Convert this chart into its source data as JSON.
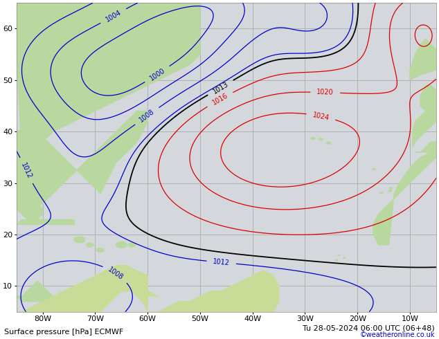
{
  "title_left": "Surface pressure [hPa] ECMWF",
  "title_right": "Tu 28-05-2024 06:00 UTC (06+48)",
  "watermark": "©weatheronline.co.uk",
  "bg_ocean": "#d4d8dc",
  "grid_color": "#aaaaaa",
  "contour_black": "#000000",
  "contour_red": "#dd0000",
  "contour_blue": "#0000cc",
  "label_fontsize": 7,
  "bottom_fontsize": 8,
  "watermark_fontsize": 7,
  "figsize": [
    6.34,
    4.9
  ],
  "dpi": 100,
  "xlim": [
    -85,
    -5
  ],
  "ylim": [
    5,
    65
  ],
  "xticks": [
    -80,
    -70,
    -60,
    -50,
    -40,
    -30,
    -20,
    -10
  ],
  "yticks": [
    10,
    20,
    30,
    40,
    50,
    60
  ],
  "xlabel_labels": [
    "80W",
    "70W",
    "60W",
    "50W",
    "40W",
    "30W",
    "20W",
    "10W"
  ],
  "ylabel_labels": [
    "10",
    "20",
    "30",
    "40",
    "50",
    "60"
  ]
}
